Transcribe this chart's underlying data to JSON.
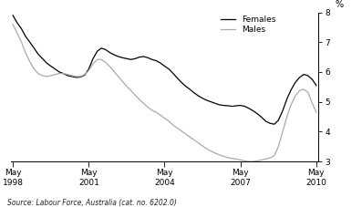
{
  "ylabel": "%",
  "source_text": "Source: Labour Force, Australia (cat. no. 6202.0)",
  "ylim": [
    3,
    8
  ],
  "yticks": [
    3,
    4,
    5,
    6,
    7,
    8
  ],
  "legend_females": "Females",
  "legend_males": "Males",
  "females_color": "#000000",
  "males_color": "#aaaaaa",
  "line_width": 0.9,
  "females_data": [
    [
      1998.33,
      7.9
    ],
    [
      1998.5,
      7.65
    ],
    [
      1998.67,
      7.45
    ],
    [
      1998.83,
      7.2
    ],
    [
      1999.0,
      7.0
    ],
    [
      1999.17,
      6.8
    ],
    [
      1999.33,
      6.6
    ],
    [
      1999.5,
      6.45
    ],
    [
      1999.67,
      6.3
    ],
    [
      1999.83,
      6.2
    ],
    [
      2000.0,
      6.1
    ],
    [
      2000.17,
      6.0
    ],
    [
      2000.33,
      5.95
    ],
    [
      2000.5,
      5.88
    ],
    [
      2000.67,
      5.85
    ],
    [
      2000.83,
      5.82
    ],
    [
      2001.0,
      5.83
    ],
    [
      2001.17,
      5.9
    ],
    [
      2001.33,
      6.1
    ],
    [
      2001.5,
      6.45
    ],
    [
      2001.67,
      6.7
    ],
    [
      2001.83,
      6.8
    ],
    [
      2002.0,
      6.75
    ],
    [
      2002.17,
      6.65
    ],
    [
      2002.33,
      6.58
    ],
    [
      2002.5,
      6.52
    ],
    [
      2002.67,
      6.48
    ],
    [
      2002.83,
      6.45
    ],
    [
      2003.0,
      6.42
    ],
    [
      2003.17,
      6.45
    ],
    [
      2003.33,
      6.5
    ],
    [
      2003.5,
      6.52
    ],
    [
      2003.67,
      6.48
    ],
    [
      2003.83,
      6.42
    ],
    [
      2004.0,
      6.38
    ],
    [
      2004.17,
      6.3
    ],
    [
      2004.33,
      6.2
    ],
    [
      2004.5,
      6.1
    ],
    [
      2004.67,
      5.95
    ],
    [
      2004.83,
      5.8
    ],
    [
      2005.0,
      5.65
    ],
    [
      2005.17,
      5.52
    ],
    [
      2005.33,
      5.42
    ],
    [
      2005.5,
      5.3
    ],
    [
      2005.67,
      5.2
    ],
    [
      2005.83,
      5.12
    ],
    [
      2006.0,
      5.05
    ],
    [
      2006.17,
      5.0
    ],
    [
      2006.33,
      4.95
    ],
    [
      2006.5,
      4.9
    ],
    [
      2006.67,
      4.88
    ],
    [
      2006.83,
      4.87
    ],
    [
      2007.0,
      4.85
    ],
    [
      2007.17,
      4.87
    ],
    [
      2007.33,
      4.88
    ],
    [
      2007.5,
      4.85
    ],
    [
      2007.67,
      4.78
    ],
    [
      2007.83,
      4.7
    ],
    [
      2008.0,
      4.6
    ],
    [
      2008.17,
      4.48
    ],
    [
      2008.33,
      4.35
    ],
    [
      2008.5,
      4.28
    ],
    [
      2008.67,
      4.25
    ],
    [
      2008.83,
      4.38
    ],
    [
      2009.0,
      4.7
    ],
    [
      2009.17,
      5.1
    ],
    [
      2009.33,
      5.4
    ],
    [
      2009.5,
      5.65
    ],
    [
      2009.67,
      5.82
    ],
    [
      2009.83,
      5.92
    ],
    [
      2010.0,
      5.88
    ],
    [
      2010.17,
      5.75
    ],
    [
      2010.33,
      5.55
    ]
  ],
  "males_data": [
    [
      1998.33,
      7.6
    ],
    [
      1998.5,
      7.3
    ],
    [
      1998.67,
      7.0
    ],
    [
      1998.83,
      6.65
    ],
    [
      1999.0,
      6.35
    ],
    [
      1999.17,
      6.1
    ],
    [
      1999.33,
      5.95
    ],
    [
      1999.5,
      5.88
    ],
    [
      1999.67,
      5.85
    ],
    [
      1999.83,
      5.88
    ],
    [
      2000.0,
      5.92
    ],
    [
      2000.17,
      5.95
    ],
    [
      2000.33,
      5.95
    ],
    [
      2000.5,
      5.92
    ],
    [
      2000.67,
      5.88
    ],
    [
      2000.83,
      5.85
    ],
    [
      2001.0,
      5.85
    ],
    [
      2001.17,
      5.92
    ],
    [
      2001.33,
      6.05
    ],
    [
      2001.5,
      6.28
    ],
    [
      2001.67,
      6.42
    ],
    [
      2001.83,
      6.42
    ],
    [
      2002.0,
      6.32
    ],
    [
      2002.17,
      6.18
    ],
    [
      2002.33,
      6.02
    ],
    [
      2002.5,
      5.85
    ],
    [
      2002.67,
      5.68
    ],
    [
      2002.83,
      5.52
    ],
    [
      2003.0,
      5.38
    ],
    [
      2003.17,
      5.22
    ],
    [
      2003.33,
      5.08
    ],
    [
      2003.5,
      4.95
    ],
    [
      2003.67,
      4.82
    ],
    [
      2003.83,
      4.72
    ],
    [
      2004.0,
      4.65
    ],
    [
      2004.17,
      4.55
    ],
    [
      2004.33,
      4.45
    ],
    [
      2004.5,
      4.35
    ],
    [
      2004.67,
      4.22
    ],
    [
      2004.83,
      4.12
    ],
    [
      2005.0,
      4.02
    ],
    [
      2005.17,
      3.92
    ],
    [
      2005.33,
      3.82
    ],
    [
      2005.5,
      3.72
    ],
    [
      2005.67,
      3.62
    ],
    [
      2005.83,
      3.52
    ],
    [
      2006.0,
      3.42
    ],
    [
      2006.17,
      3.35
    ],
    [
      2006.33,
      3.28
    ],
    [
      2006.5,
      3.22
    ],
    [
      2006.67,
      3.17
    ],
    [
      2006.83,
      3.13
    ],
    [
      2007.0,
      3.1
    ],
    [
      2007.17,
      3.08
    ],
    [
      2007.33,
      3.05
    ],
    [
      2007.5,
      3.02
    ],
    [
      2007.67,
      3.0
    ],
    [
      2007.83,
      3.0
    ],
    [
      2008.0,
      3.02
    ],
    [
      2008.17,
      3.05
    ],
    [
      2008.33,
      3.08
    ],
    [
      2008.5,
      3.12
    ],
    [
      2008.67,
      3.2
    ],
    [
      2008.83,
      3.5
    ],
    [
      2009.0,
      4.0
    ],
    [
      2009.17,
      4.5
    ],
    [
      2009.33,
      4.9
    ],
    [
      2009.5,
      5.2
    ],
    [
      2009.67,
      5.38
    ],
    [
      2009.83,
      5.42
    ],
    [
      2010.0,
      5.32
    ],
    [
      2010.17,
      4.95
    ],
    [
      2010.33,
      4.65
    ]
  ],
  "xtick_positions": [
    1998.33,
    2001.33,
    2004.33,
    2007.33,
    2010.33
  ],
  "xtick_labels": [
    "May\n1998",
    "May\n2001",
    "May\n2004",
    "May\n2007",
    "May\n2010"
  ],
  "xlim": [
    1998.25,
    2010.42
  ],
  "background_color": "#ffffff"
}
